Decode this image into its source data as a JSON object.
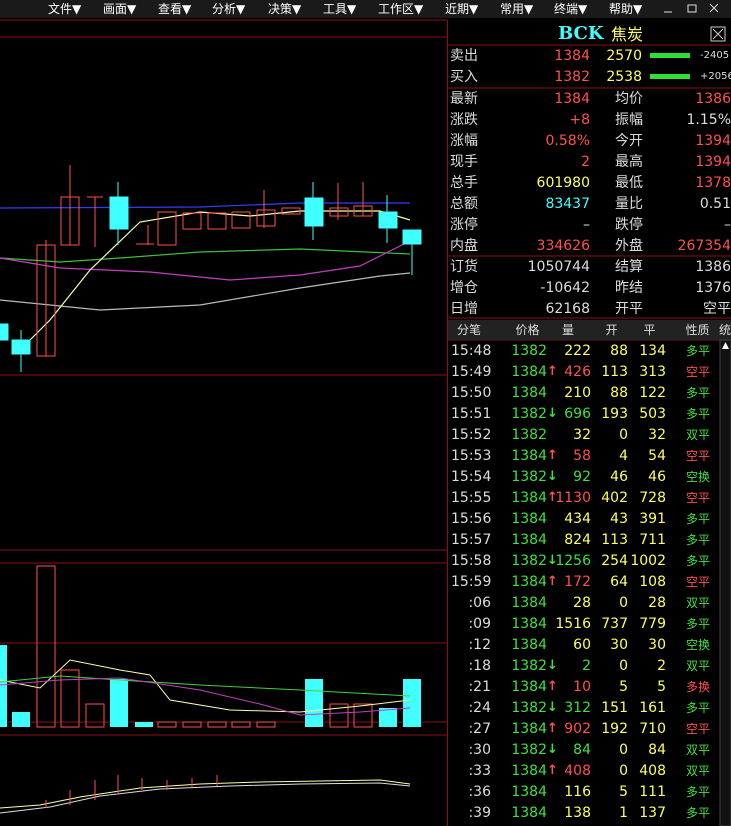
{
  "menu": [
    "文件▼",
    "画面▼",
    "查看▼",
    "分析▼",
    "决策▼",
    "工具▼",
    "工作区▼",
    "近期▼",
    "常用▼",
    "终端▼",
    "帮助▼"
  ],
  "header": {
    "code": "BCK",
    "name": "焦炭"
  },
  "quotes": [
    {
      "label": "卖出",
      "price": "1384",
      "volume": "2570",
      "change": "-2405"
    },
    {
      "label": "买入",
      "price": "1382",
      "volume": "2538",
      "change": "+2056"
    }
  ],
  "stats": [
    [
      "最新",
      "1384",
      "均价",
      "1386"
    ],
    [
      "涨跌",
      "+8",
      "振幅",
      "1.15%"
    ],
    [
      "涨幅",
      "0.58%",
      "今开",
      "1394"
    ],
    [
      "现手",
      "2",
      "最高",
      "1394"
    ],
    [
      "总手",
      "601980",
      "最低",
      "1378"
    ],
    [
      "总额",
      "83437",
      "量比",
      "0.51"
    ],
    [
      "涨停",
      "–",
      "跌停",
      "–"
    ],
    [
      "内盘",
      "334626",
      "外盘",
      "267354"
    ],
    [
      "订货",
      "1050744",
      "结算",
      "1386"
    ],
    [
      "增仓",
      "-10642",
      "昨结",
      "1376"
    ],
    [
      "日增",
      "62168",
      "开平",
      "空平"
    ]
  ],
  "trades": {
    "columns": [
      "分笔",
      "价格",
      "量",
      "开",
      "平",
      "性质",
      "统"
    ],
    "rows": [
      {
        "time": "15:48",
        "price": "1382",
        "volume": "222",
        "open": "88",
        "close": "134",
        "nature": "多平"
      },
      {
        "time": "15:49",
        "price": "1384",
        "dir": "↑",
        "volume": "426",
        "open": "113",
        "close": "313",
        "nature": "空平"
      },
      {
        "time": "15:50",
        "price": "1384",
        "volume": "210",
        "open": "88",
        "close": "122",
        "nature": "多平"
      },
      {
        "time": "15:51",
        "price": "1382",
        "dir": "↓",
        "volume": "696",
        "open": "193",
        "close": "503",
        "nature": "多平"
      },
      {
        "time": "15:52",
        "price": "1382",
        "volume": "32",
        "open": "0",
        "close": "32",
        "nature": "双平"
      },
      {
        "time": "15:53",
        "price": "1384",
        "dir": "↑",
        "volume": "58",
        "open": "4",
        "close": "54",
        "nature": "空平"
      },
      {
        "time": "15:54",
        "price": "1382",
        "dir": "↓",
        "volume": "92",
        "open": "46",
        "close": "46",
        "nature": "空换"
      },
      {
        "time": "15:55",
        "price": "1384",
        "dir": "↑",
        "volume": "1130",
        "open": "402",
        "close": "728",
        "nature": "空平"
      },
      {
        "time": "15:56",
        "price": "1384",
        "volume": "434",
        "open": "43",
        "close": "391",
        "nature": "多平"
      },
      {
        "time": "15:57",
        "price": "1384",
        "volume": "824",
        "open": "113",
        "close": "711",
        "nature": "多平"
      },
      {
        "time": "15:58",
        "price": "1382",
        "dir": "↓",
        "volume": "1256",
        "open": "254",
        "close": "1002",
        "nature": "多平"
      },
      {
        "time": "15:59",
        "price": "1384",
        "dir": "↑",
        "volume": "172",
        "open": "64",
        "close": "108",
        "nature": "空平"
      },
      {
        "time": ":06",
        "price": "1384",
        "volume": "28",
        "open": "0",
        "close": "28",
        "nature": "双平"
      },
      {
        "time": ":09",
        "price": "1384",
        "volume": "1516",
        "open": "737",
        "close": "779",
        "nature": "多平"
      },
      {
        "time": ":12",
        "price": "1384",
        "volume": "60",
        "open": "30",
        "close": "30",
        "nature": "空换"
      },
      {
        "time": ":18",
        "price": "1382",
        "dir": "↓",
        "volume": "2",
        "open": "0",
        "close": "2",
        "nature": "双平"
      },
      {
        "time": ":21",
        "price": "1384",
        "dir": "↑",
        "volume": "10",
        "open": "5",
        "close": "5",
        "nature": "多换"
      },
      {
        "time": ":24",
        "price": "1382",
        "dir": "↓",
        "volume": "312",
        "open": "151",
        "close": "161",
        "nature": "多平"
      },
      {
        "time": ":27",
        "price": "1384",
        "dir": "↑",
        "volume": "902",
        "open": "192",
        "close": "710",
        "nature": "空平"
      },
      {
        "time": ":30",
        "price": "1382",
        "dir": "↓",
        "volume": "84",
        "open": "0",
        "close": "84",
        "nature": "双平"
      },
      {
        "time": ":33",
        "price": "1384",
        "dir": "↑",
        "volume": "408",
        "open": "0",
        "close": "408",
        "nature": "双平"
      },
      {
        "time": ":36",
        "price": "1384",
        "volume": "116",
        "open": "5",
        "close": "111",
        "nature": "多平"
      },
      {
        "time": ":39",
        "price": "1384",
        "volume": "138",
        "open": "1",
        "close": "137",
        "nature": "多平"
      }
    ]
  }
}
